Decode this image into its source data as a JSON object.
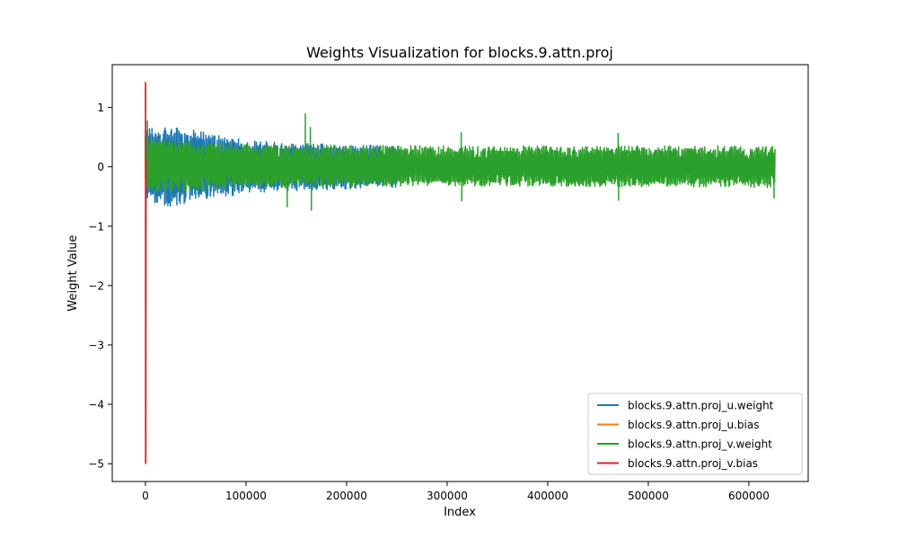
{
  "chart_data": {
    "type": "line",
    "title": "Weights Visualization for blocks.9.attn.proj",
    "xlabel": "Index",
    "ylabel": "Weight Value",
    "xlim": [
      -33000,
      659000
    ],
    "ylim": [
      -5.3,
      1.72
    ],
    "xticks": [
      0,
      100000,
      200000,
      300000,
      400000,
      500000,
      600000
    ],
    "xtick_labels": [
      "0",
      "100000",
      "200000",
      "300000",
      "400000",
      "500000",
      "600000"
    ],
    "yticks": [
      1,
      0,
      -1,
      -2,
      -3,
      -4,
      -5
    ],
    "ytick_labels": [
      "1",
      "0",
      "−1",
      "−2",
      "−3",
      "−4",
      "−5"
    ],
    "grid": false,
    "legend_position": "lower-right",
    "series": [
      {
        "name": "blocks.9.attn.proj_u.weight",
        "color": "#1f77b4",
        "x_range": [
          0,
          250000
        ],
        "envelope": [
          {
            "x": 0,
            "low": -0.55,
            "high": 0.65
          },
          {
            "x": 20000,
            "low": -0.68,
            "high": 0.72
          },
          {
            "x": 60000,
            "low": -0.55,
            "high": 0.58
          },
          {
            "x": 100000,
            "low": -0.45,
            "high": 0.45
          },
          {
            "x": 150000,
            "low": -0.4,
            "high": 0.4
          },
          {
            "x": 200000,
            "low": -0.38,
            "high": 0.38
          },
          {
            "x": 250000,
            "low": -0.35,
            "high": 0.35
          }
        ]
      },
      {
        "name": "blocks.9.attn.proj_u.bias",
        "color": "#ff7f0e",
        "x_range": [
          0,
          500
        ],
        "envelope": [
          {
            "x": 0,
            "low": -0.2,
            "high": 0.2
          },
          {
            "x": 500,
            "low": -0.2,
            "high": 0.2
          }
        ]
      },
      {
        "name": "blocks.9.attn.proj_v.weight",
        "color": "#2ca02c",
        "x_range": [
          0,
          626000
        ],
        "envelope": [
          {
            "x": 0,
            "low": -0.45,
            "high": 0.5
          },
          {
            "x": 100000,
            "low": -0.35,
            "high": 0.38
          },
          {
            "x": 300000,
            "low": -0.32,
            "high": 0.35
          },
          {
            "x": 626000,
            "low": -0.35,
            "high": 0.35
          }
        ],
        "spikes": [
          {
            "x": 2000,
            "y": 0.78
          },
          {
            "x": 141000,
            "y": -0.68
          },
          {
            "x": 159000,
            "y": 0.9
          },
          {
            "x": 164000,
            "y": 0.67
          },
          {
            "x": 165000,
            "y": -0.74
          },
          {
            "x": 314000,
            "y": 0.58
          },
          {
            "x": 314500,
            "y": -0.58
          },
          {
            "x": 470000,
            "y": 0.57
          },
          {
            "x": 470500,
            "y": -0.57
          },
          {
            "x": 625000,
            "y": -0.53
          }
        ]
      },
      {
        "name": "blocks.9.attn.proj_v.bias",
        "color": "#d62728",
        "x_range": [
          0,
          768
        ],
        "points": [
          {
            "x": 0,
            "y": 1.43
          },
          {
            "x": 100,
            "y": -5.0
          },
          {
            "x": 250,
            "y": 1.4
          },
          {
            "x": 400,
            "y": -4.98
          },
          {
            "x": 550,
            "y": -1.4
          },
          {
            "x": 700,
            "y": 0.1
          }
        ]
      }
    ]
  }
}
